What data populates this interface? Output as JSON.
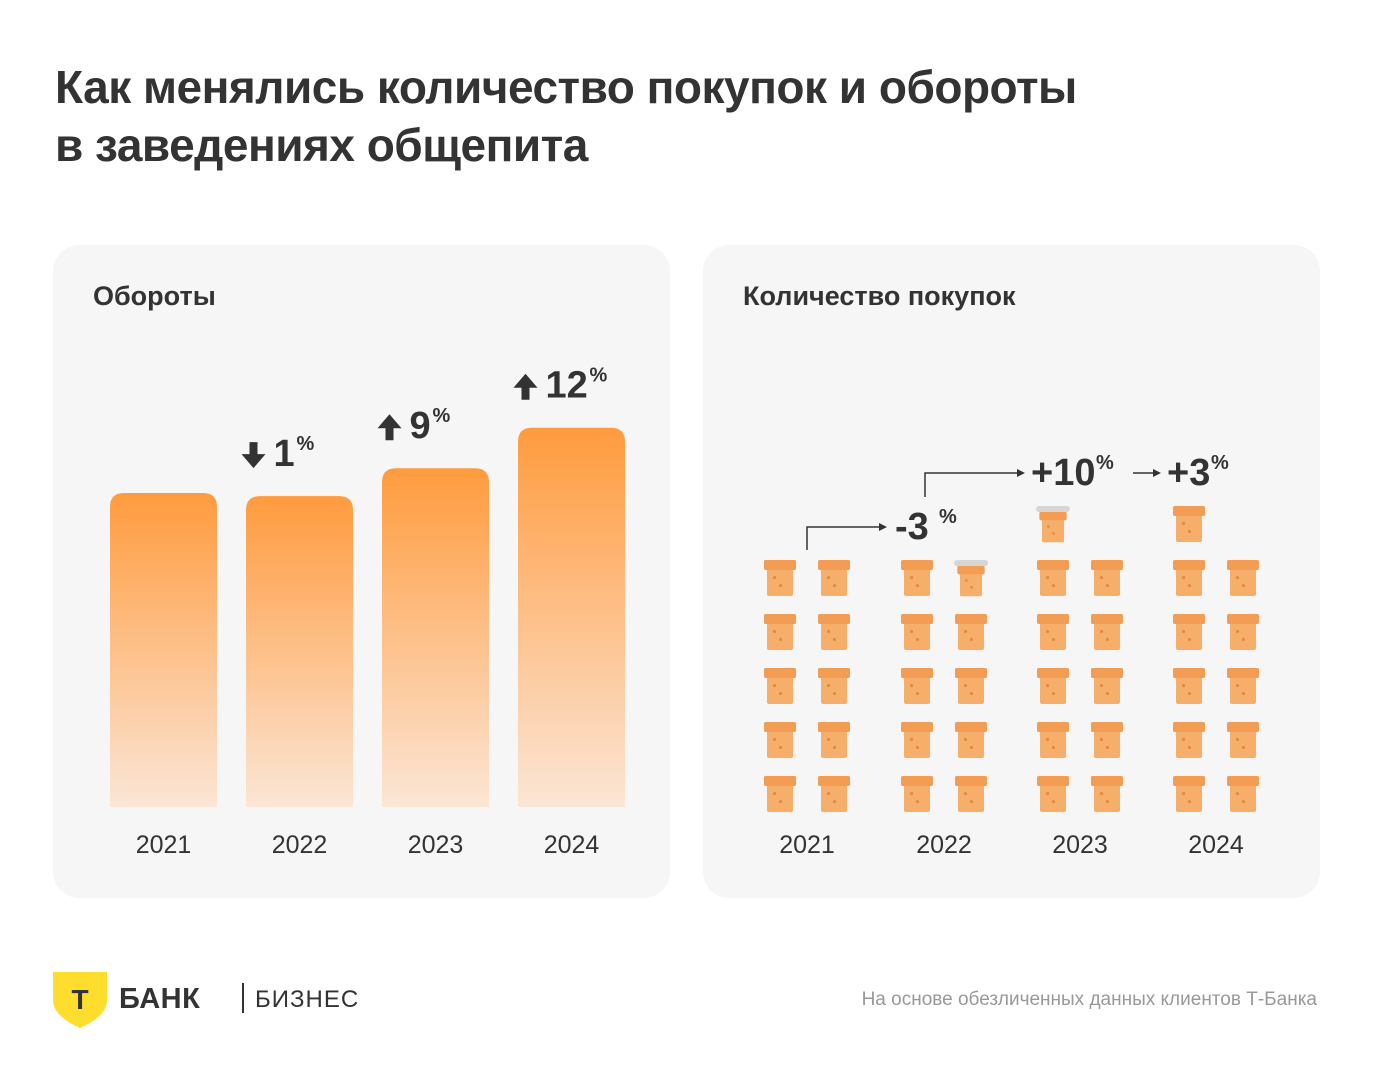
{
  "title": {
    "line1": "Как менялись количество покупок и обороты",
    "line2": "в заведениях общепита"
  },
  "colors": {
    "accent": "#ff9b3e",
    "accent_light": "#fbe6d6",
    "text": "#333333",
    "muted": "#999999",
    "panel": "#f6f6f6",
    "logo_yellow": "#ffdd2d",
    "icon_fill": "#f6ae6b",
    "icon_removed": "#d6d6d6"
  },
  "chart_data": [
    {
      "type": "bar",
      "title": "Обороты",
      "categories": [
        "2021",
        "2022",
        "2023",
        "2024"
      ],
      "values": [
        100,
        99,
        107.9,
        120.8
      ],
      "changes": [
        null,
        {
          "direction": "down",
          "value": "1",
          "unit": "%"
        },
        {
          "direction": "up",
          "value": "9",
          "unit": "%"
        },
        {
          "direction": "up",
          "value": "12",
          "unit": "%"
        }
      ],
      "ylim": [
        0,
        125
      ],
      "xlabel": "",
      "ylabel": ""
    },
    {
      "type": "pictogram",
      "title": "Количество покупок",
      "icon": "bread-slice-icon",
      "categories": [
        "2021",
        "2022",
        "2023",
        "2024"
      ],
      "full_icons": [
        10,
        9.7,
        10.7,
        11
      ],
      "changes": [
        null,
        {
          "label": "-3",
          "unit": "%"
        },
        {
          "label": "+10",
          "unit": "%"
        },
        {
          "label": "+3",
          "unit": "%"
        }
      ]
    }
  ],
  "footer": {
    "logo_letter": "Т",
    "bank": "БАНК",
    "business": "БИЗНЕС",
    "source": "На основе обезличенных данных клиентов Т-Банка"
  }
}
